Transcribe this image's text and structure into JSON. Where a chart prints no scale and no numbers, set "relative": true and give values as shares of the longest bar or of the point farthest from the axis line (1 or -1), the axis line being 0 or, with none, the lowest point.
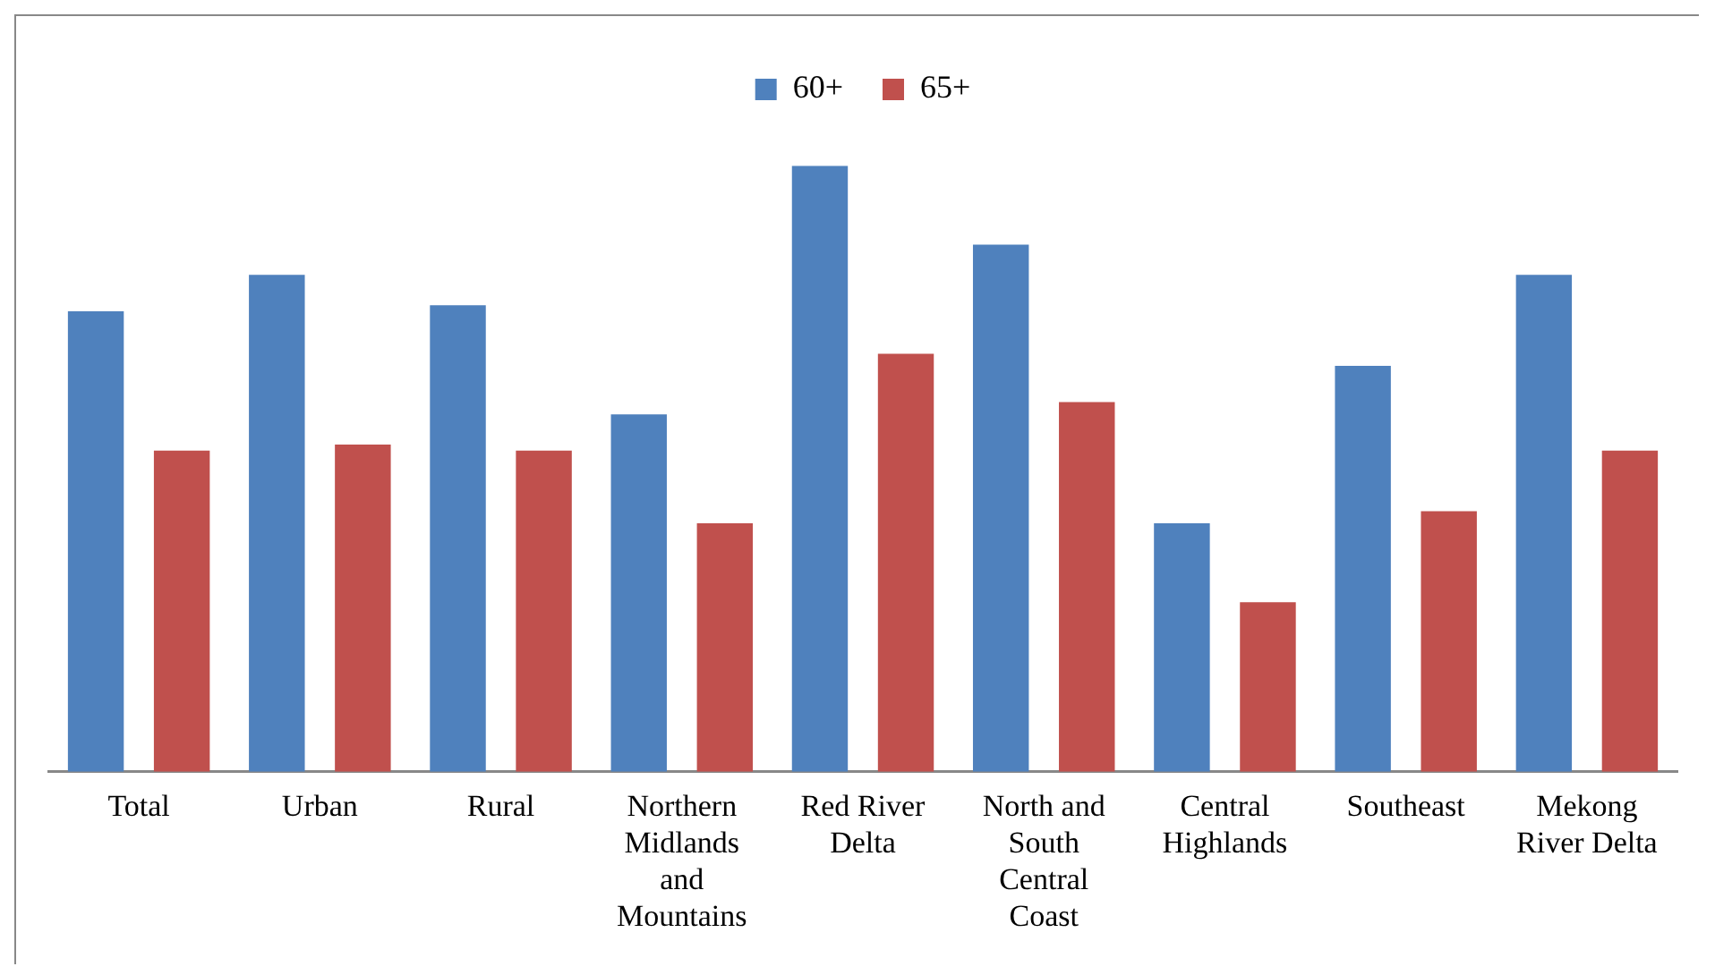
{
  "chart_data": {
    "type": "bar",
    "relative": true,
    "legend": "top",
    "grid": false,
    "categories": [
      "Total",
      "Urban",
      "Rural",
      "Northern Midlands and Mountains",
      "Red River Delta",
      "North and South Central Coast",
      "Central Highlands",
      "Southeast",
      "Mekong River Delta"
    ],
    "series": [
      {
        "name": "60+",
        "color": "#4f81bd",
        "values": [
          0.76,
          0.82,
          0.77,
          0.59,
          1,
          0.87,
          0.41,
          0.67,
          0.82
        ]
      },
      {
        "name": "65+",
        "color": "#c0504d",
        "values": [
          0.53,
          0.54,
          0.53,
          0.41,
          0.69,
          0.61,
          0.28,
          0.43,
          0.53
        ]
      }
    ]
  }
}
